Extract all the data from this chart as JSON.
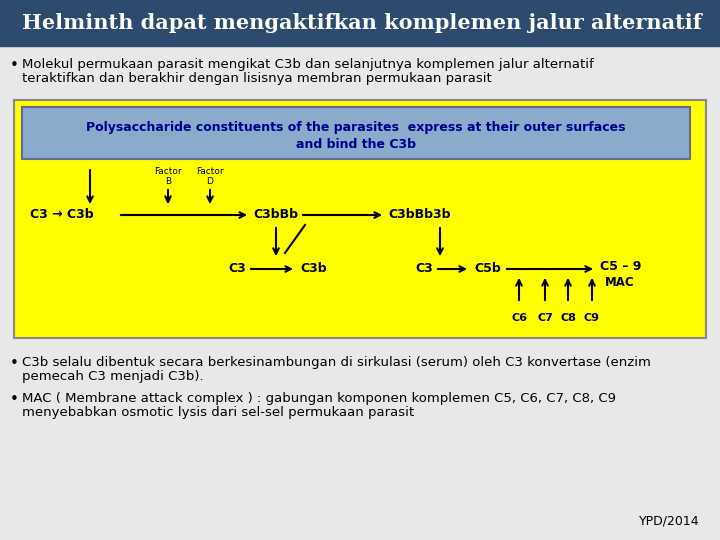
{
  "title": "Helminth dapat mengaktifkan komplemen jalur alternatif",
  "title_bg": "#2e4a6e",
  "title_color": "#ffffff",
  "title_fontsize": 15,
  "bg_color": "#e8e8e8",
  "bullet1_line1": "Molekul permukaan parasit mengikat C3b dan selanjutnya komplemen jalur alternatif",
  "bullet1_line2": "teraktifkan dan berakhir dengan lisisnya membran permukaan parasit",
  "box_bg": "#ffff00",
  "box_border": "#888888",
  "header_bg": "#8aabcc",
  "header_border": "#666699",
  "box_title1": "Polysaccharide constituents of the parasites  express at their outer surfaces",
  "box_title2": "and bind the C3b",
  "box_title_color": "#00008b",
  "text_color": "#000000",
  "bullet3_line1": "C3b selalu dibentuk secara berkesinambungan di sirkulasi (serum) oleh C3 konvertase (enzim",
  "bullet3_line2": "pemecah C3 menjadi C3b).",
  "bullet4_line1": "MAC ( Membrane attack complex ) : gabungan komponen komplemen C5, C6, C7, C8, C9",
  "bullet4_line2": "menyebabkan osmotic lysis dari sel-sel permukaan parasit",
  "footer": "YPD/2014"
}
